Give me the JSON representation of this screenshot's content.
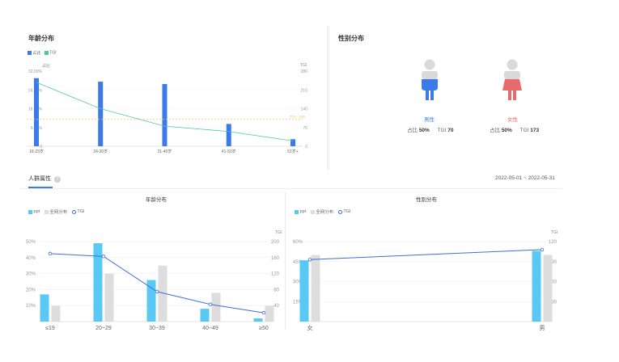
{
  "age_panel": {
    "title": "年龄分布",
    "legend": [
      {
        "label": "占比",
        "color": "#3b7ae8"
      },
      {
        "label": "TGI",
        "color": "#4cc9a3"
      }
    ],
    "left_axis_title": "占比",
    "right_axis_title": "TGI",
    "tgi_ref_label": "TGI : 100"
  },
  "gender_panel": {
    "title": "性别分布",
    "male": {
      "label": "男性",
      "share_label": "占比",
      "share": "50%",
      "tgi_label": "TGI",
      "tgi": "70",
      "color": "#3b7ae8"
    },
    "female": {
      "label": "女性",
      "share_label": "占比",
      "share": "50%",
      "tgi_label": "TGI",
      "tgi": "173",
      "color": "#e86b6b"
    }
  },
  "crowd_section": {
    "tab_label": "人群属性",
    "help_icon": "question-circle-icon",
    "date_range": "2022-05-01 ~ 2022-05-31"
  },
  "chart_data": [
    {
      "type": "bar",
      "title": "年龄分布",
      "categories": [
        "18-23岁",
        "24-30岁",
        "31-40岁",
        "41-50岁",
        "51岁+"
      ],
      "series": [
        {
          "name": "占比",
          "kind": "bar",
          "axis": "left",
          "values": [
            29,
            27.5,
            26.5,
            9.5,
            3
          ]
        },
        {
          "name": "TGI",
          "kind": "line",
          "axis": "right",
          "values": [
            238,
            140,
            75,
            55,
            20
          ]
        }
      ],
      "y_left": {
        "ticks": [
          "0",
          "8.00%",
          "16.00%",
          "24.00%",
          "32.00%"
        ],
        "lim": [
          0,
          32
        ]
      },
      "y_right": {
        "ticks": [
          "0",
          "70",
          "140",
          "210",
          "280"
        ],
        "lim": [
          0,
          280
        ]
      },
      "reference_line": 100,
      "colors": {
        "bar": "#3b7ae8",
        "line": "#4cc9a3",
        "ref": "#f5c560"
      }
    },
    {
      "type": "bar",
      "title": "年龄分布",
      "legend": [
        "ppt",
        "全网分布",
        "TGI"
      ],
      "categories": [
        "≤19",
        "20~29",
        "30~39",
        "40~49",
        "≥50"
      ],
      "series": [
        {
          "name": "ppt",
          "kind": "bar",
          "axis": "left",
          "values": [
            17,
            49,
            26,
            8,
            2
          ]
        },
        {
          "name": "全网分布",
          "kind": "bar",
          "axis": "left",
          "values": [
            10,
            30,
            35,
            18,
            10
          ]
        },
        {
          "name": "TGI",
          "kind": "line",
          "axis": "right",
          "values": [
            170,
            163,
            75,
            43,
            22
          ]
        }
      ],
      "y_left": {
        "ticks": [
          "",
          "10%",
          "20%",
          "30%",
          "40%",
          "50%"
        ],
        "lim": [
          0,
          50
        ]
      },
      "y_right": {
        "title": "TGI",
        "ticks": [
          "",
          "40",
          "80",
          "120",
          "160",
          "200"
        ],
        "lim": [
          0,
          200
        ]
      },
      "colors": {
        "ppt": "#5ac8f5",
        "all": "#dddddd",
        "line": "#3b6fd9"
      }
    },
    {
      "type": "bar",
      "title": "性别分布",
      "legend": [
        "ppt",
        "全网分布",
        "TGI"
      ],
      "categories": [
        "女",
        "男"
      ],
      "series": [
        {
          "name": "ppt",
          "kind": "bar",
          "axis": "left",
          "values": [
            46,
            53
          ]
        },
        {
          "name": "全网分布",
          "kind": "bar",
          "axis": "left",
          "values": [
            50,
            50
          ]
        },
        {
          "name": "TGI",
          "kind": "line",
          "axis": "right",
          "values": [
            93,
            108
          ]
        }
      ],
      "y_left": {
        "ticks": [
          "",
          "15%",
          "30%",
          "45%",
          "60%"
        ],
        "lim": [
          0,
          60
        ]
      },
      "y_right": {
        "title": "TGI",
        "ticks": [
          "",
          "30",
          "60",
          "90",
          "120"
        ],
        "lim": [
          0,
          120
        ]
      },
      "colors": {
        "ppt": "#5ac8f5",
        "all": "#dddddd",
        "line": "#3b6fd9"
      }
    }
  ]
}
